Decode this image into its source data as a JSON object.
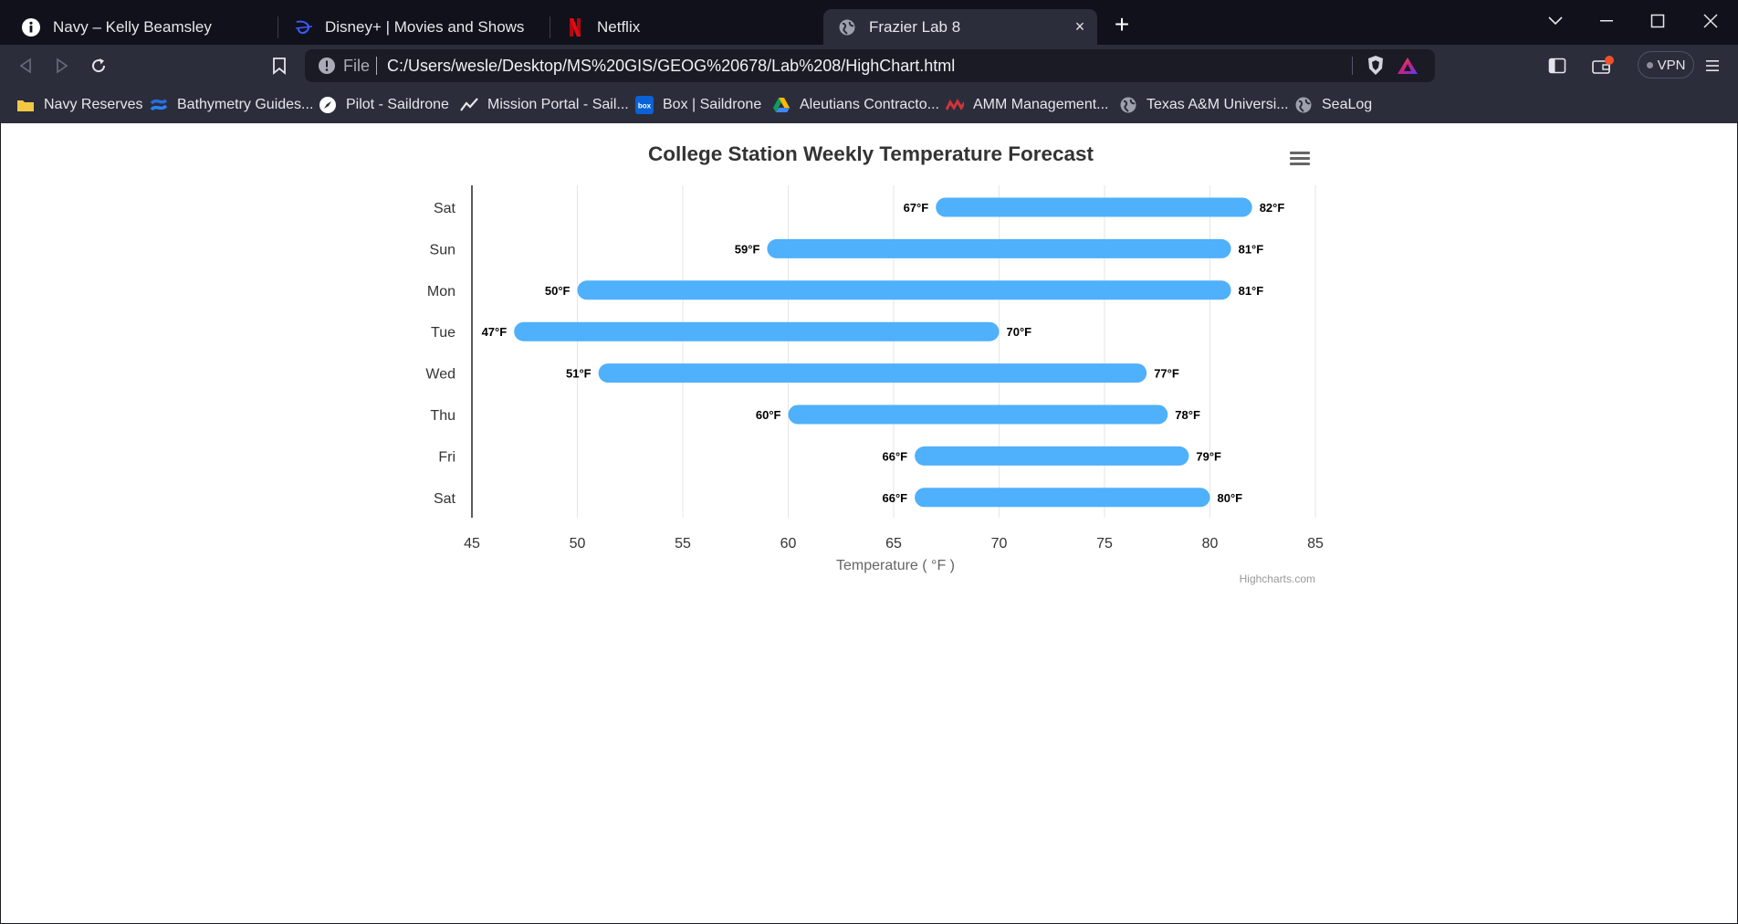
{
  "browser": {
    "tabs": [
      {
        "label": "Navy – Kelly Beamsley",
        "icon": "info-icon",
        "active": false
      },
      {
        "label": "Disney+ | Movies and Shows",
        "icon": "disney-icon",
        "active": false
      },
      {
        "label": "Netflix",
        "icon": "netflix-icon",
        "active": false
      },
      {
        "label": "Frazier Lab 8",
        "icon": "globe-icon",
        "active": true
      }
    ],
    "new_tab_label": "+",
    "close_tab_label": "×",
    "address": {
      "scheme_label": "File",
      "url": "C:/Users/wesle/Desktop/MS%20GIS/GEOG%20678/Lab%208/HighChart.html"
    },
    "vpn_label": "VPN",
    "bookmarks": [
      {
        "label": "Navy Reserves",
        "icon": "folder-icon"
      },
      {
        "label": "Bathymetry Guides...",
        "icon": "confluence-icon"
      },
      {
        "label": "Pilot - Saildrone",
        "icon": "compass-icon"
      },
      {
        "label": "Mission Portal - Sail...",
        "icon": "chart-line-icon"
      },
      {
        "label": "Box | Saildrone",
        "icon": "box-icon"
      },
      {
        "label": "Aleutians Contracto...",
        "icon": "google-drive-icon"
      },
      {
        "label": "AMM Management...",
        "icon": "amm-logo-icon"
      },
      {
        "label": "Texas A&M Universi...",
        "icon": "globe-icon"
      },
      {
        "label": "SeaLog",
        "icon": "globe-icon"
      }
    ],
    "colors": {
      "tabstrip": "#10111a",
      "toolbar": "#2b2d3b",
      "urlbar": "#1a1b24"
    }
  },
  "chart_data": {
    "type": "columnrange",
    "orientation": "horizontal",
    "title": "College Station Weekly Temperature Forecast",
    "categories": [
      "Sat",
      "Sun",
      "Mon",
      "Tue",
      "Wed",
      "Thu",
      "Fri",
      "Sat"
    ],
    "low": [
      67,
      59,
      50,
      47,
      51,
      60,
      66,
      66
    ],
    "high": [
      82,
      81,
      81,
      70,
      77,
      78,
      79,
      80
    ],
    "value_suffix": "°F",
    "xlabel": "Temperature ( °F )",
    "xlim": [
      45,
      85
    ],
    "xticks": [
      45,
      50,
      55,
      60,
      65,
      70,
      75,
      80,
      85
    ],
    "grid": true,
    "legend": false,
    "credits": "Highcharts.com",
    "bar_color": "#4fb0fb"
  }
}
